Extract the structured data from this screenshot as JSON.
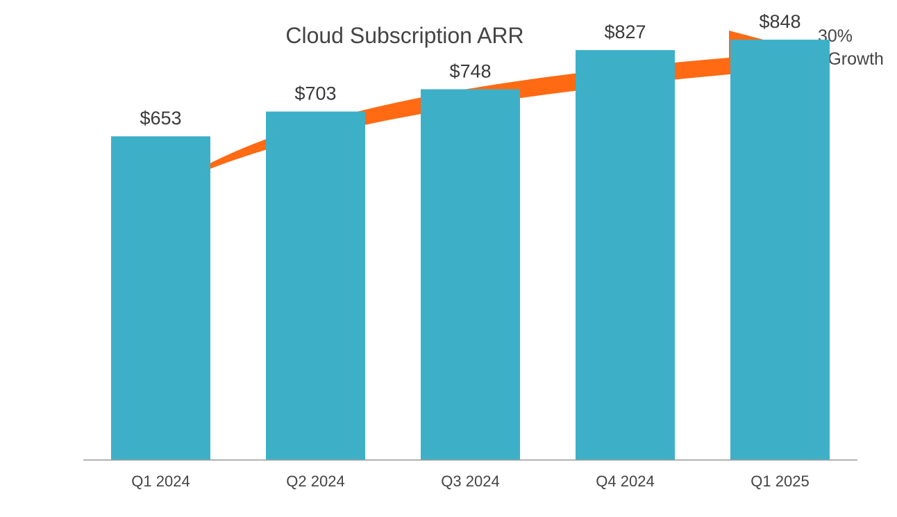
{
  "chart_data": {
    "type": "bar",
    "title": "Cloud Subscription ARR",
    "categories": [
      "Q1 2024",
      "Q2 2024",
      "Q3 2024",
      "Q4 2024",
      "Q1 2025"
    ],
    "values": [
      653,
      703,
      748,
      827,
      848
    ],
    "value_labels": [
      "$653",
      "$703",
      "$748",
      "$827",
      "$848"
    ],
    "xlabel": "",
    "ylabel": "",
    "ylim": [
      0,
      900
    ],
    "grid": false,
    "annotation": {
      "line1": "30%",
      "line2": "YOY Growth",
      "arrow": "curved arrow from first bar to top-right"
    },
    "colors": {
      "bar": "#3db0c8",
      "arrow": "#ff6a13",
      "axis": "#9a9a9a",
      "text": "#444444"
    }
  }
}
